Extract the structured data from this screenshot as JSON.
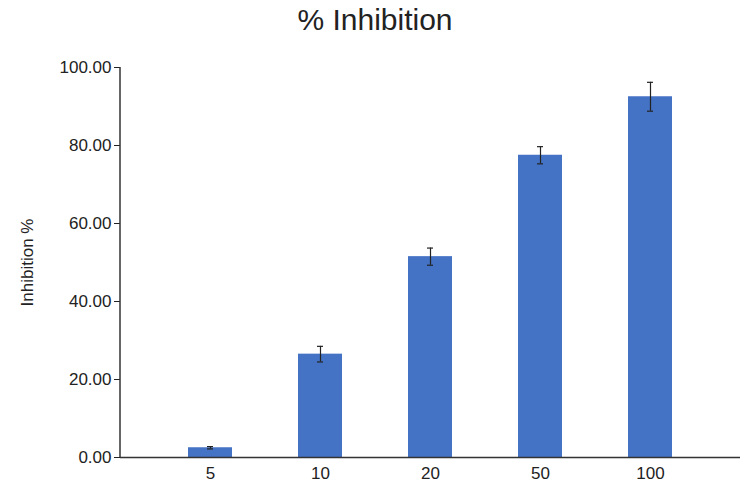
{
  "chart_data": {
    "type": "bar",
    "title": "% Inhibition",
    "y_label": "Inhibition %",
    "categories": [
      "5",
      "10",
      "20",
      "50",
      "100"
    ],
    "values": [
      2.5,
      26.5,
      51.5,
      77.5,
      92.5
    ],
    "errors": [
      0.3,
      2.0,
      2.2,
      2.2,
      3.7
    ],
    "color": "#4472c4",
    "ylim": [
      0,
      100
    ],
    "yticks": [
      {
        "value": 0,
        "label": "0.00"
      },
      {
        "value": 20,
        "label": "20.00"
      },
      {
        "value": 40,
        "label": "40.00"
      },
      {
        "value": 60,
        "label": "60.00"
      },
      {
        "value": 80,
        "label": "80.00"
      },
      {
        "value": 100,
        "label": "100.00"
      }
    ],
    "grid": false
  }
}
